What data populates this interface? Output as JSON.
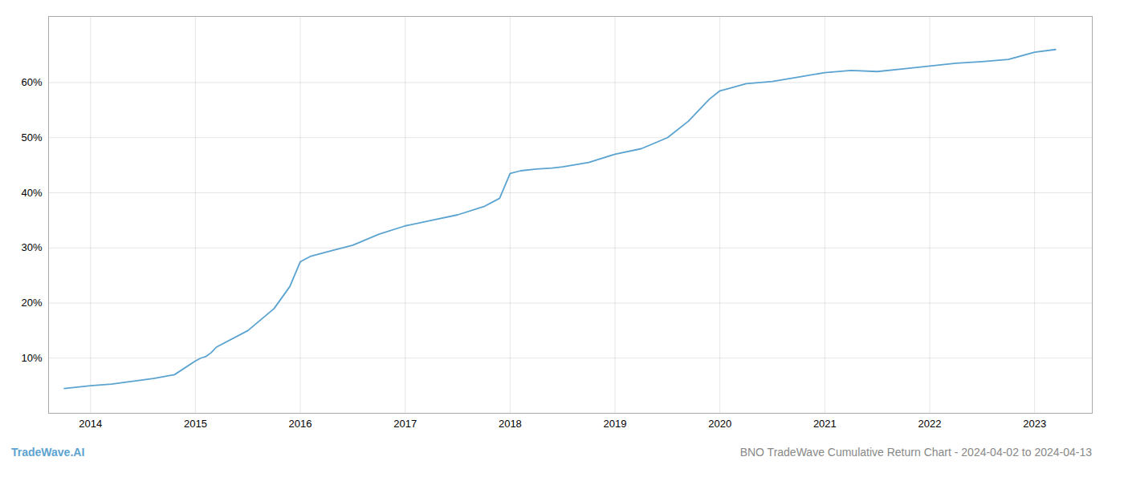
{
  "chart_data": {
    "type": "line",
    "title": "BNO TradeWave Cumulative Return Chart - 2024-04-02 to 2024-04-13",
    "annotations": [
      "TradeWave.AI"
    ],
    "x": [
      2013.75,
      2014.0,
      2014.2,
      2014.4,
      2014.6,
      2014.8,
      2015.0,
      2015.05,
      2015.1,
      2015.15,
      2015.2,
      2015.5,
      2015.75,
      2015.9,
      2016.0,
      2016.05,
      2016.1,
      2016.3,
      2016.5,
      2016.75,
      2017.0,
      2017.25,
      2017.5,
      2017.75,
      2017.9,
      2018.0,
      2018.1,
      2018.25,
      2018.4,
      2018.5,
      2018.75,
      2019.0,
      2019.25,
      2019.5,
      2019.7,
      2019.8,
      2019.9,
      2020.0,
      2020.1,
      2020.25,
      2020.5,
      2020.75,
      2021.0,
      2021.25,
      2021.5,
      2021.75,
      2022.0,
      2022.25,
      2022.5,
      2022.75,
      2023.0,
      2023.2
    ],
    "values": [
      4.5,
      5.0,
      5.3,
      5.8,
      6.3,
      7.0,
      9.5,
      10.0,
      10.3,
      11.0,
      12.0,
      15.0,
      19.0,
      23.0,
      27.5,
      28.0,
      28.5,
      29.5,
      30.5,
      32.5,
      34.0,
      35.0,
      36.0,
      37.5,
      39.0,
      43.5,
      44.0,
      44.3,
      44.5,
      44.7,
      45.5,
      47.0,
      48.0,
      50.0,
      53.0,
      55.0,
      57.0,
      58.5,
      59.0,
      59.8,
      60.2,
      61.0,
      61.8,
      62.2,
      62.0,
      62.5,
      63.0,
      63.5,
      63.8,
      64.2,
      65.5,
      66.0
    ],
    "color": "#5ba3d0",
    "xlim": [
      2013.6,
      2023.55
    ],
    "ylim": [
      0,
      72
    ],
    "xticks": [
      2014,
      2015,
      2016,
      2017,
      2018,
      2019,
      2020,
      2021,
      2022,
      2023
    ],
    "yticks": [
      {
        "value": 10,
        "label": "10%"
      },
      {
        "value": 20,
        "label": "20%"
      },
      {
        "value": 30,
        "label": "30%"
      },
      {
        "value": 40,
        "label": "40%"
      },
      {
        "value": 50,
        "label": "50%"
      },
      {
        "value": 60,
        "label": "60%"
      }
    ],
    "grid": true
  }
}
